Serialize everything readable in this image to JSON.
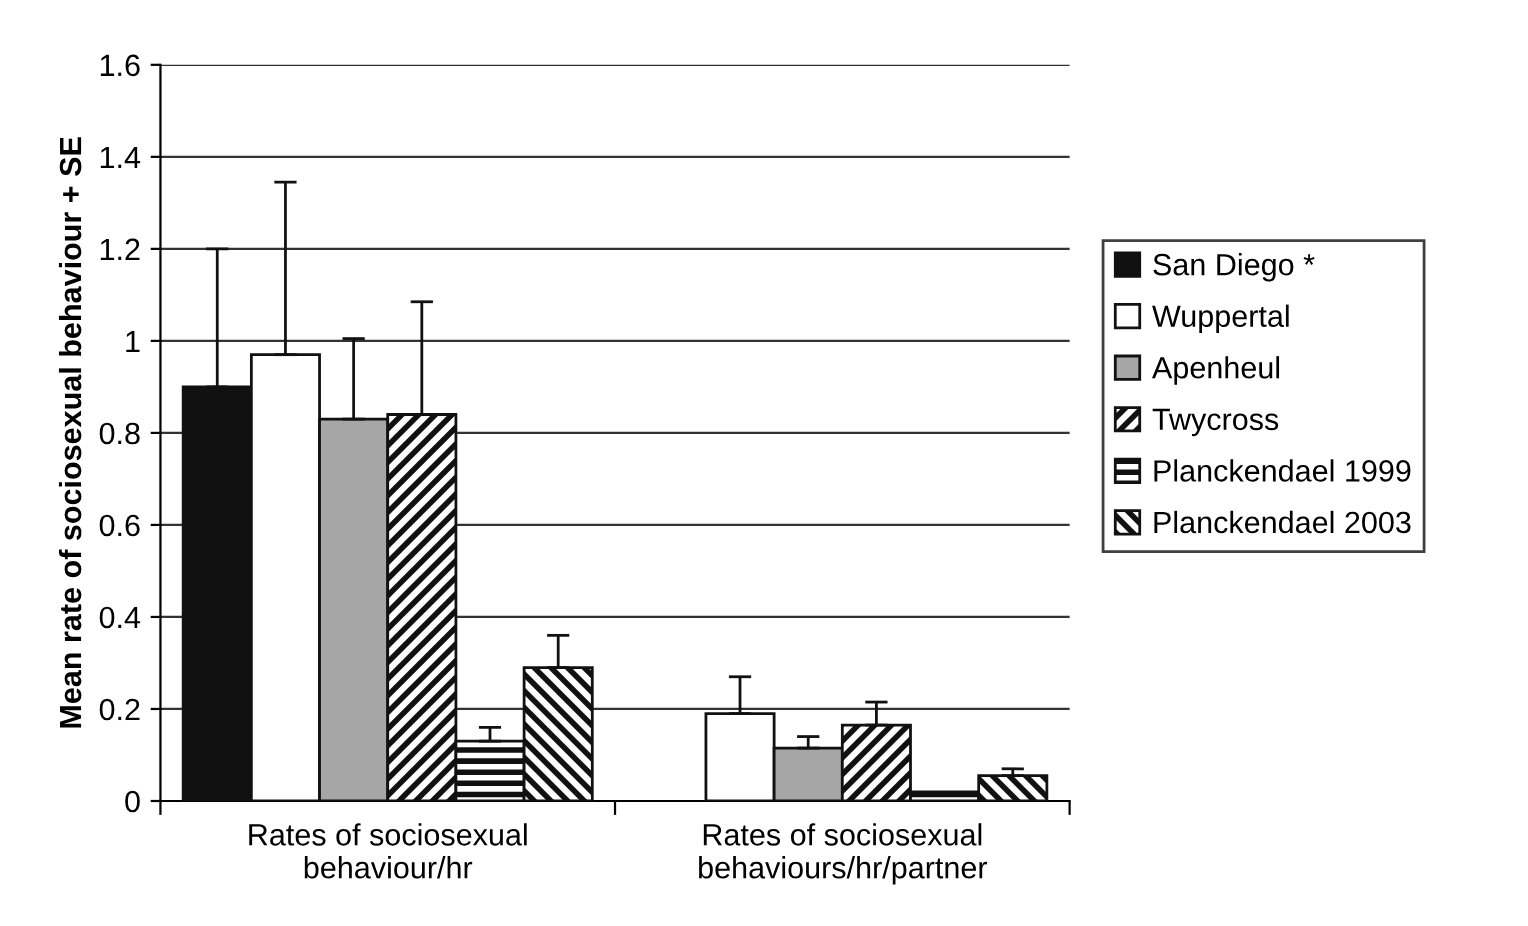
{
  "chart_data": {
    "type": "bar",
    "ylabel": "Mean rate of sociosexual behaviour + SE",
    "categories": [
      "Rates of sociosexual\nbehaviour/hr",
      "Rates of sociosexual\nbehaviours/hr/partner"
    ],
    "series": [
      {
        "name": "San Diego *",
        "color": "#111111",
        "values": [
          0.9,
          null
        ],
        "errors": [
          0.3,
          null
        ]
      },
      {
        "name": "Wuppertal",
        "color": "#ffffff",
        "values": [
          0.97,
          0.19
        ],
        "errors": [
          0.375,
          0.08
        ]
      },
      {
        "name": "Apenheul",
        "color": "#a6a6a6",
        "values": [
          0.83,
          0.115
        ],
        "errors": [
          0.175,
          0.025
        ]
      },
      {
        "name": "Twycross",
        "color": "#111111",
        "values": [
          0.84,
          0.165
        ],
        "errors": [
          0.245,
          0.05
        ]
      },
      {
        "name": "Planckendael 1999",
        "color": "#111111",
        "values": [
          0.13,
          0.02
        ],
        "errors": [
          0.03,
          null
        ]
      },
      {
        "name": "Planckendael 2003",
        "color": "#111111",
        "values": [
          0.29,
          0.055
        ],
        "errors": [
          0.07,
          0.015
        ]
      }
    ],
    "ylim": [
      0,
      1.6
    ],
    "yticks": [
      0,
      0.2,
      0.4,
      0.6,
      0.8,
      1,
      1.2,
      1.4,
      1.6
    ],
    "grid": "y",
    "legend": "right"
  }
}
